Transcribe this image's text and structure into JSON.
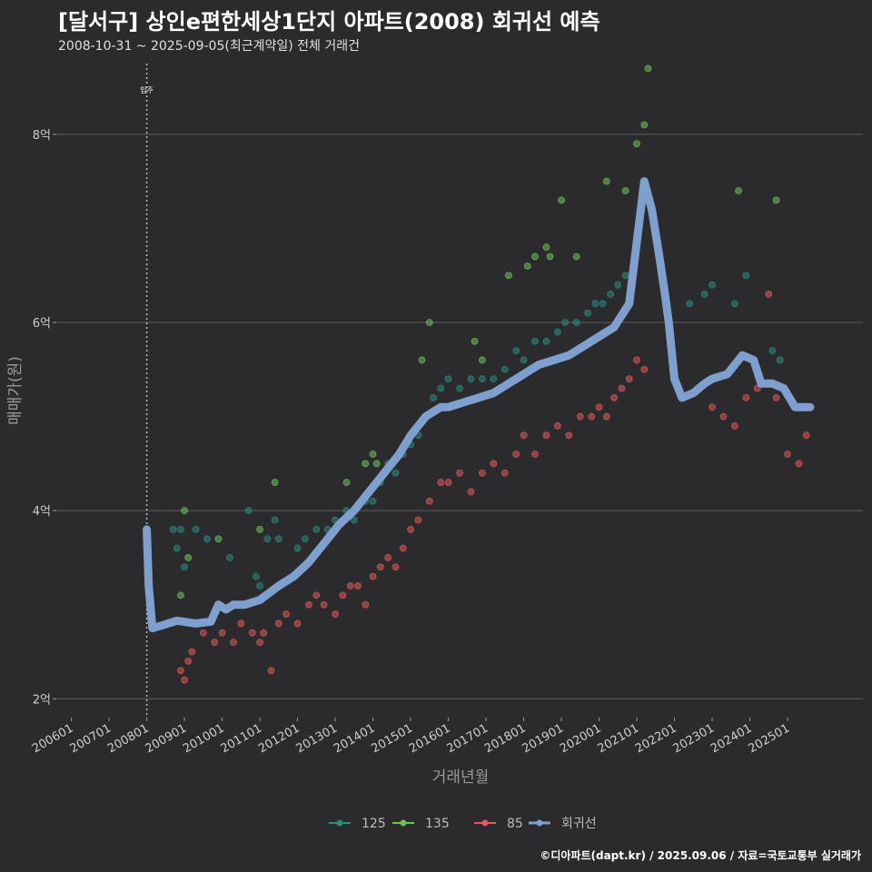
{
  "header": {
    "title": "[달서구] 상인e편한세상1단지 아파트(2008) 회귀선 예측",
    "subtitle": "2008-10-31 ~ 2025-09-05(최근계약일) 전체 거래건"
  },
  "credit": "©디아파트(dapt.kr) / 2025.09.06 / 자료=국토교통부 실거래가",
  "colors": {
    "background": "#2b2b2d",
    "grid": "#5e5e5e",
    "series_125": "#2e8b82",
    "series_135": "#6fbf5a",
    "series_85": "#e05a5a",
    "regression": "#7f9fcf",
    "annotation_line": "#bbbbbb"
  },
  "chart_data": {
    "type": "scatter",
    "title": "[달서구] 상인e편한세상1단지 아파트(2008) 회귀선 예측",
    "xlabel": "거래년월",
    "ylabel": "매매가(원)",
    "x_tick_labels": [
      "200601",
      "200701",
      "200801",
      "200901",
      "201001",
      "201101",
      "201201",
      "201301",
      "201401",
      "201501",
      "201601",
      "201701",
      "201801",
      "201901",
      "202001",
      "202101",
      "202201",
      "202301",
      "202401",
      "202501"
    ],
    "xlim": [
      2005.6,
      2027.0
    ],
    "ylim": [
      1.8,
      8.8
    ],
    "y_ticks": [
      2,
      4,
      6,
      8
    ],
    "y_tick_labels": [
      "2억",
      "4억",
      "6억",
      "8억"
    ],
    "grid": "horizontal",
    "legend": {
      "placement": "bottom",
      "entries": [
        "125",
        "135",
        "85",
        "회귀선"
      ]
    },
    "annotations": [
      {
        "x": 2008.0,
        "label": "입주"
      }
    ],
    "series": [
      {
        "name": "125",
        "kind": "scatter",
        "x": [
          2008.7,
          2008.8,
          2008.9,
          2009.0,
          2009.3,
          2009.6,
          2010.2,
          2010.7,
          2010.9,
          2011.0,
          2011.2,
          2011.4,
          2011.5,
          2012.0,
          2012.2,
          2012.5,
          2012.8,
          2013.0,
          2013.3,
          2013.5,
          2013.8,
          2014.0,
          2014.2,
          2014.4,
          2014.6,
          2014.8,
          2015.0,
          2015.2,
          2015.4,
          2015.6,
          2015.8,
          2016.0,
          2016.3,
          2016.6,
          2016.9,
          2017.2,
          2017.5,
          2017.8,
          2018.0,
          2018.3,
          2018.6,
          2018.9,
          2019.1,
          2019.4,
          2019.7,
          2019.9,
          2020.1,
          2020.3,
          2020.5,
          2020.7,
          2020.9,
          2022.4,
          2022.8,
          2023.0,
          2023.6,
          2023.9,
          2024.6,
          2024.8
        ],
        "y": [
          3.8,
          3.6,
          3.8,
          3.4,
          3.8,
          3.7,
          3.5,
          4.0,
          3.3,
          3.2,
          3.7,
          3.9,
          3.7,
          3.6,
          3.7,
          3.8,
          3.8,
          3.9,
          4.0,
          3.9,
          4.1,
          4.1,
          4.3,
          4.5,
          4.4,
          4.6,
          4.7,
          4.8,
          5.0,
          5.2,
          5.3,
          5.4,
          5.3,
          5.4,
          5.4,
          5.4,
          5.5,
          5.7,
          5.6,
          5.8,
          5.8,
          5.9,
          6.0,
          6.0,
          6.1,
          6.2,
          6.2,
          6.3,
          6.4,
          6.5,
          6.6,
          6.2,
          6.3,
          6.4,
          6.2,
          6.5,
          5.7,
          5.6
        ]
      },
      {
        "name": "135",
        "kind": "scatter",
        "x": [
          2008.9,
          2009.0,
          2009.1,
          2009.9,
          2011.0,
          2011.4,
          2013.3,
          2013.8,
          2014.0,
          2014.1,
          2015.3,
          2015.5,
          2016.7,
          2016.9,
          2017.6,
          2018.1,
          2018.3,
          2018.6,
          2018.7,
          2019.0,
          2019.4,
          2020.2,
          2020.7,
          2021.0,
          2021.2,
          2021.3,
          2023.7,
          2024.7
        ],
        "y": [
          3.1,
          4.0,
          3.5,
          3.7,
          3.8,
          4.3,
          4.3,
          4.5,
          4.6,
          4.5,
          5.6,
          6.0,
          5.8,
          5.6,
          6.5,
          6.6,
          6.7,
          6.8,
          6.7,
          7.3,
          6.7,
          7.5,
          7.4,
          7.9,
          8.1,
          8.7,
          7.4,
          7.3
        ]
      },
      {
        "name": "85",
        "kind": "scatter",
        "x": [
          2008.9,
          2009.0,
          2009.1,
          2009.2,
          2009.5,
          2009.8,
          2010.0,
          2010.3,
          2010.5,
          2010.8,
          2011.0,
          2011.1,
          2011.3,
          2011.5,
          2011.7,
          2012.0,
          2012.3,
          2012.5,
          2012.7,
          2013.0,
          2013.2,
          2013.4,
          2013.6,
          2013.8,
          2014.0,
          2014.2,
          2014.4,
          2014.6,
          2014.8,
          2015.0,
          2015.2,
          2015.5,
          2015.8,
          2016.0,
          2016.3,
          2016.6,
          2016.9,
          2017.2,
          2017.5,
          2017.8,
          2018.0,
          2018.3,
          2018.6,
          2018.9,
          2019.2,
          2019.5,
          2019.8,
          2020.0,
          2020.2,
          2020.4,
          2020.6,
          2020.8,
          2021.0,
          2021.2,
          2023.0,
          2023.3,
          2023.6,
          2023.9,
          2024.2,
          2024.5,
          2024.7,
          2025.0,
          2025.3,
          2025.5
        ],
        "y": [
          2.3,
          2.2,
          2.4,
          2.5,
          2.7,
          2.6,
          2.7,
          2.6,
          2.8,
          2.7,
          2.6,
          2.7,
          2.3,
          2.8,
          2.9,
          2.8,
          3.0,
          3.1,
          3.0,
          2.9,
          3.1,
          3.2,
          3.2,
          3.0,
          3.3,
          3.4,
          3.5,
          3.4,
          3.6,
          3.8,
          3.9,
          4.1,
          4.3,
          4.3,
          4.4,
          4.2,
          4.4,
          4.5,
          4.4,
          4.6,
          4.8,
          4.6,
          4.8,
          4.9,
          4.8,
          5.0,
          5.0,
          5.1,
          5.0,
          5.2,
          5.3,
          5.4,
          5.6,
          5.5,
          5.1,
          5.0,
          4.9,
          5.2,
          5.3,
          6.3,
          5.2,
          4.6,
          4.5,
          4.8
        ]
      },
      {
        "name": "회귀선",
        "kind": "line",
        "x": [
          2008.0,
          2008.05,
          2008.15,
          2008.4,
          2008.8,
          2009.3,
          2009.7,
          2009.9,
          2010.1,
          2010.3,
          2010.6,
          2011.0,
          2011.5,
          2011.9,
          2012.3,
          2012.7,
          2013.1,
          2013.5,
          2013.9,
          2014.3,
          2014.7,
          2015.0,
          2015.4,
          2015.8,
          2016.0,
          2016.4,
          2016.8,
          2017.2,
          2017.6,
          2018.0,
          2018.4,
          2018.8,
          2019.2,
          2019.6,
          2020.0,
          2020.4,
          2020.8,
          2021.2,
          2021.4,
          2021.6,
          2021.75,
          2021.85,
          2022.0,
          2022.2,
          2022.5,
          2022.8,
          2023.0,
          2023.4,
          2023.8,
          2024.1,
          2024.3,
          2024.6,
          2024.9,
          2025.2,
          2025.6
        ],
        "y": [
          3.8,
          3.2,
          2.75,
          2.78,
          2.83,
          2.8,
          2.82,
          3.0,
          2.95,
          3.0,
          3.0,
          3.05,
          3.2,
          3.3,
          3.45,
          3.65,
          3.85,
          4.0,
          4.2,
          4.4,
          4.6,
          4.8,
          5.0,
          5.1,
          5.1,
          5.15,
          5.2,
          5.25,
          5.35,
          5.45,
          5.55,
          5.6,
          5.65,
          5.75,
          5.85,
          5.95,
          6.2,
          7.5,
          7.2,
          6.7,
          6.3,
          6.0,
          5.4,
          5.2,
          5.25,
          5.35,
          5.4,
          5.45,
          5.65,
          5.6,
          5.35,
          5.35,
          5.3,
          5.1,
          5.1
        ]
      }
    ]
  }
}
